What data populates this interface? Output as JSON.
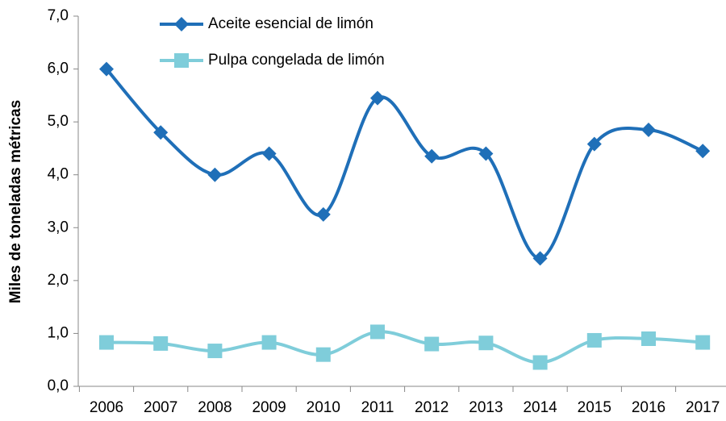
{
  "chart_data": {
    "type": "line",
    "categories": [
      "2006",
      "2007",
      "2008",
      "2009",
      "2010",
      "2011",
      "2012",
      "2013",
      "2014",
      "2015",
      "2016",
      "2017"
    ],
    "y_label": "Miles de toneladas métricas",
    "series": [
      {
        "name": "Aceite esencial de limón",
        "color": "#1f6fb8",
        "marker": "diamond",
        "values": [
          6.0,
          4.8,
          4.0,
          4.4,
          3.25,
          5.45,
          4.35,
          4.4,
          2.42,
          4.58,
          4.85,
          4.45
        ]
      },
      {
        "name": "Pulpa congelada de limón",
        "color": "#7fcdda",
        "marker": "square",
        "values": [
          0.83,
          0.81,
          0.67,
          0.83,
          0.6,
          1.03,
          0.8,
          0.82,
          0.45,
          0.87,
          0.9,
          0.83
        ]
      }
    ],
    "ylim": [
      0,
      7
    ],
    "yticks": [
      {
        "value": 0,
        "label": "0,0"
      },
      {
        "value": 1,
        "label": "1,0"
      },
      {
        "value": 2,
        "label": "2,0"
      },
      {
        "value": 3,
        "label": "3,0"
      },
      {
        "value": 4,
        "label": "4,0"
      },
      {
        "value": 5,
        "label": "5,0"
      },
      {
        "value": 6,
        "label": "6,0"
      },
      {
        "value": 7,
        "label": "7,0"
      }
    ],
    "smooth": true,
    "grid": false,
    "legend": "top"
  }
}
